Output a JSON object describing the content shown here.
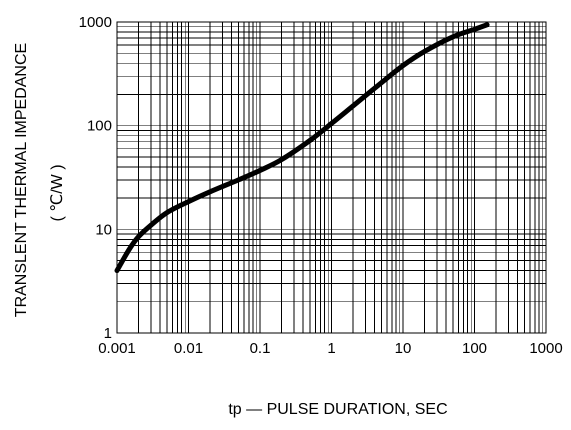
{
  "chart_data": {
    "type": "line",
    "title": "",
    "xlabel": "tp — PULSE  DURATION, SEC",
    "ylabel": "TRANSLENT THERMAL IMPEDANCE",
    "ylabel_unit": "( ℃/W )",
    "xscale": "log",
    "yscale": "log",
    "xlim": [
      0.001,
      1000
    ],
    "ylim": [
      1,
      1000
    ],
    "x_ticks": [
      0.001,
      0.01,
      0.1,
      1,
      10,
      100,
      1000
    ],
    "x_tick_labels": [
      "0.001",
      "0.01",
      "0.1",
      "1",
      "10",
      "100",
      "1000"
    ],
    "y_ticks": [
      1,
      10,
      100,
      1000
    ],
    "y_tick_labels": [
      "1",
      "10",
      "100",
      "1000"
    ],
    "grid": true,
    "series": [
      {
        "x": [
          0.001,
          0.0015,
          0.002,
          0.003,
          0.005,
          0.01,
          0.02,
          0.05,
          0.1,
          0.2,
          0.5,
          1,
          2,
          5,
          10,
          20,
          50,
          100,
          150
        ],
        "y": [
          4,
          6.5,
          8.5,
          11,
          14.5,
          18.5,
          23,
          30,
          37,
          47,
          72,
          105,
          155,
          260,
          380,
          520,
          720,
          850,
          940
        ]
      }
    ]
  }
}
